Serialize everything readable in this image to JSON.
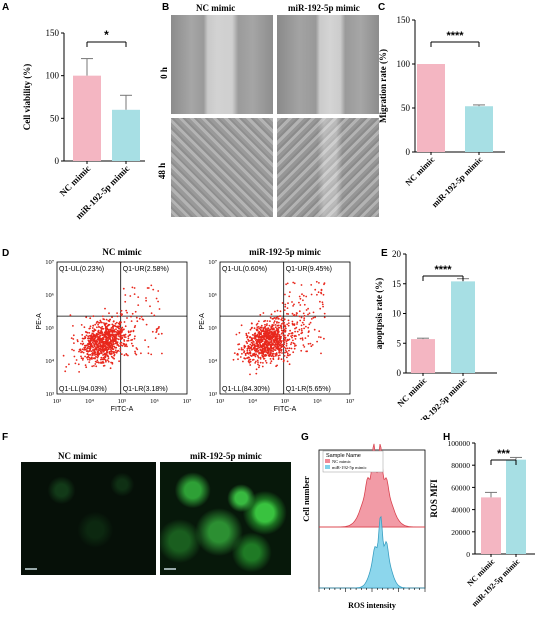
{
  "panels": {
    "A": "A",
    "B": "B",
    "C": "C",
    "D": "D",
    "E": "E",
    "F": "F",
    "G": "G",
    "H": "H"
  },
  "colors": {
    "pink": "#f4b6c2",
    "cyan": "#a7dfe4",
    "dot_red": "#e8271c",
    "green": "#39c23f"
  },
  "chart_data": [
    {
      "panel": "A",
      "type": "bar",
      "categories": [
        "NC mimic",
        "miR-192-5p mimic"
      ],
      "values": [
        100,
        60
      ],
      "errors": [
        20,
        17
      ],
      "ylabel": "Cell viability (%)",
      "yticks": [
        0,
        50,
        100,
        150
      ],
      "ylim": [
        0,
        150
      ],
      "significance": "*"
    },
    {
      "panel": "C",
      "type": "bar",
      "categories": [
        "NC mimic",
        "miR-192-5p mimic"
      ],
      "values": [
        100,
        52
      ],
      "errors": [
        0,
        1.5
      ],
      "ylabel": "Migration rate (%)",
      "yticks": [
        0,
        50,
        100,
        150
      ],
      "ylim": [
        0,
        150
      ],
      "significance": "****"
    },
    {
      "panel": "E",
      "type": "bar",
      "categories": [
        "NC mimic",
        "miR-192-5p mimic"
      ],
      "values": [
        5.7,
        15.4
      ],
      "errors": [
        0.15,
        0.45
      ],
      "ylabel": "apoptpsis rate (%)",
      "yticks": [
        0,
        5,
        10,
        15,
        20
      ],
      "ylim": [
        0,
        20
      ],
      "significance": "****"
    },
    {
      "panel": "H",
      "type": "bar",
      "categories": [
        "NC mimic",
        "miR-192-5p mimic"
      ],
      "values": [
        51000,
        85000
      ],
      "errors": [
        4500,
        2000
      ],
      "ylabel": "ROS MFI",
      "yticks": [
        0,
        20000,
        40000,
        60000,
        80000,
        100000
      ],
      "ylim": [
        0,
        100000
      ],
      "significance": "***"
    },
    {
      "panel": "D",
      "type": "scatter",
      "plots": [
        {
          "title": "NC mimic",
          "xlabel": "FITC-A",
          "ylabel": "PE-A",
          "quadrants": [
            "Q1-UL(0.23%)",
            "Q1-UR(2.58%)",
            "Q1-LL(94.03%)",
            "Q1-LR(3.18%)"
          ]
        },
        {
          "title": "miR-192-5p mimic",
          "xlabel": "FITC-A",
          "ylabel": "PE-A",
          "quadrants": [
            "Q1-UL(0.60%)",
            "Q1-UR(9.45%)",
            "Q1-LL(84.30%)",
            "Q1-LR(5.65%)"
          ]
        }
      ],
      "xticks": [
        "10³",
        "10⁴",
        "10⁵",
        "10⁶",
        "10⁷"
      ],
      "yticks": [
        "10³",
        "10⁴",
        "10⁵",
        "10⁶",
        "10⁷"
      ]
    },
    {
      "panel": "G",
      "type": "area",
      "legend_title": "Sample Name",
      "series": [
        {
          "name": "NC mimic"
        },
        {
          "name": "miR-192-5p mimic"
        }
      ],
      "xlabel": "ROS intensity",
      "ylabel": "Cell number"
    }
  ],
  "panelB": {
    "cols": [
      "NC mimic",
      "miR-192-5p mimic"
    ],
    "rows": [
      "0 h",
      "48 h"
    ]
  },
  "panelF": {
    "cols": [
      "NC mimic",
      "miR-192-5p mimic"
    ]
  }
}
